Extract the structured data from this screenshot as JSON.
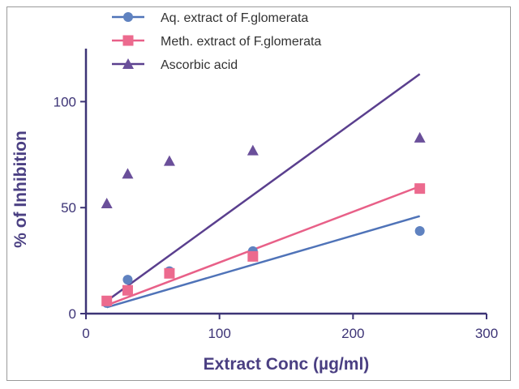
{
  "chart_data": {
    "type": "scatter",
    "xlabel": "Extract Conc (µg/ml)",
    "ylabel": "% of Inhibition",
    "xlim": [
      0,
      300
    ],
    "ylim": [
      0,
      125
    ],
    "xticks": [
      0,
      100,
      200,
      300
    ],
    "yticks": [
      0,
      50,
      100
    ],
    "grid": false,
    "legend_position": "top-left",
    "series": [
      {
        "name": "Aq. extract of F.glomerata",
        "marker": "circle",
        "color": "#5f82c0",
        "line_color": "#4f73b8",
        "points": [
          [
            15.6,
            5
          ],
          [
            31.25,
            16
          ],
          [
            62.5,
            20
          ],
          [
            125,
            29.5
          ],
          [
            250,
            39
          ]
        ],
        "fit_line": [
          [
            15.6,
            3
          ],
          [
            250,
            46
          ]
        ]
      },
      {
        "name": "Meth. extract of F.glomerata",
        "marker": "square",
        "color": "#ec6a8e",
        "line_color": "#e86088",
        "points": [
          [
            15.6,
            6
          ],
          [
            31.25,
            11
          ],
          [
            62.5,
            19
          ],
          [
            125,
            27
          ],
          [
            250,
            59
          ]
        ],
        "fit_line": [
          [
            15.6,
            4
          ],
          [
            250,
            60
          ]
        ]
      },
      {
        "name": "Ascorbic acid",
        "marker": "triangle",
        "color": "#6a4f9a",
        "line_color": "#5a3f8e",
        "points": [
          [
            15.6,
            52
          ],
          [
            31.25,
            66
          ],
          [
            62.5,
            72
          ],
          [
            125,
            77
          ],
          [
            250,
            83
          ]
        ],
        "fit_line": [
          [
            15.6,
            6
          ],
          [
            250,
            113
          ]
        ]
      }
    ]
  }
}
